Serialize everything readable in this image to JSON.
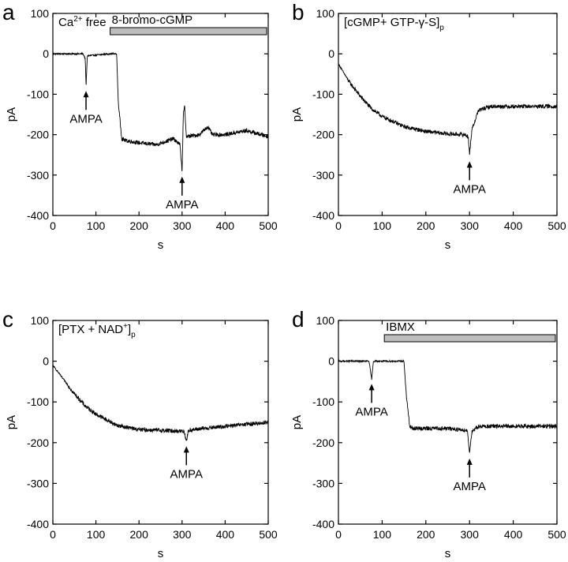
{
  "figure": {
    "background": "#ffffff",
    "trace_color": "#000000",
    "bar_color": "#bdbdbd"
  },
  "chart_data": [
    {
      "panel": "a",
      "type": "line",
      "title": "",
      "condition": {
        "main": "Ca",
        "sup": "2+",
        "rest": " free"
      },
      "bar_label": "8-bromo-cGMP",
      "bar_range_s": [
        133,
        500
      ],
      "xlabel": "s",
      "ylabel": "pA",
      "xlim": [
        0,
        500
      ],
      "ylim": [
        -400,
        100
      ],
      "xticks": [
        0,
        100,
        200,
        300,
        400,
        500
      ],
      "yticks": [
        100,
        0,
        -100,
        -200,
        -300,
        -400
      ],
      "grid": false,
      "series": [
        {
          "x": [
            0,
            70,
            75,
            77,
            80,
            130,
            148,
            152,
            160,
            170,
            200,
            240,
            280,
            295,
            300,
            303,
            306,
            310,
            340,
            360,
            370,
            400,
            450,
            500
          ],
          "y": [
            0,
            0,
            -10,
            -80,
            -5,
            0,
            0,
            -120,
            -210,
            -215,
            -220,
            -225,
            -210,
            -225,
            -290,
            -150,
            -130,
            -205,
            -200,
            -180,
            -200,
            -200,
            -190,
            -205
          ]
        }
      ],
      "annotations": [
        {
          "text": "AMPA",
          "x": 77,
          "y": -88
        },
        {
          "text": "AMPA",
          "x": 300,
          "y": -300
        }
      ]
    },
    {
      "panel": "b",
      "type": "line",
      "title": "",
      "condition": {
        "main": "[cGMP+ GTP-γ-S]",
        "sub": "p"
      },
      "xlabel": "s",
      "ylabel": "pA",
      "xlim": [
        0,
        500
      ],
      "ylim": [
        -400,
        100
      ],
      "xticks": [
        0,
        100,
        200,
        300,
        400,
        500
      ],
      "yticks": [
        100,
        0,
        -100,
        -200,
        -300,
        -400
      ],
      "grid": false,
      "series": [
        {
          "x": [
            0,
            25,
            50,
            75,
            100,
            150,
            200,
            250,
            290,
            297,
            300,
            305,
            320,
            350,
            400,
            450,
            500
          ],
          "y": [
            -25,
            -70,
            -105,
            -135,
            -155,
            -180,
            -192,
            -198,
            -200,
            -205,
            -250,
            -190,
            -140,
            -130,
            -130,
            -130,
            -130
          ]
        }
      ],
      "annotations": [
        {
          "text": "AMPA",
          "x": 300,
          "y": -262
        }
      ]
    },
    {
      "panel": "c",
      "type": "line",
      "title": "",
      "condition": {
        "main": "[PTX + NAD",
        "sup": "+",
        "rest": "]",
        "sub": "p"
      },
      "xlabel": "s",
      "ylabel": "pA",
      "xlim": [
        0,
        500
      ],
      "ylim": [
        -400,
        100
      ],
      "xticks": [
        0,
        100,
        200,
        300,
        400,
        500
      ],
      "yticks": [
        100,
        0,
        -100,
        -200,
        -300,
        -400
      ],
      "grid": false,
      "series": [
        {
          "x": [
            0,
            25,
            50,
            75,
            100,
            150,
            200,
            250,
            305,
            310,
            315,
            350,
            400,
            450,
            500
          ],
          "y": [
            -10,
            -45,
            -80,
            -110,
            -130,
            -158,
            -168,
            -170,
            -172,
            -195,
            -170,
            -165,
            -160,
            -155,
            -150
          ]
        }
      ],
      "annotations": [
        {
          "text": "AMPA",
          "x": 310,
          "y": -205
        }
      ]
    },
    {
      "panel": "d",
      "type": "line",
      "title": "",
      "bar_label": "IBMX",
      "bar_range_s": [
        105,
        500
      ],
      "xlabel": "s",
      "ylabel": "pA",
      "xlim": [
        0,
        500
      ],
      "ylim": [
        -400,
        100
      ],
      "xticks": [
        0,
        100,
        200,
        300,
        400,
        500
      ],
      "yticks": [
        100,
        0,
        -100,
        -200,
        -300,
        -400
      ],
      "grid": false,
      "series": [
        {
          "x": [
            0,
            70,
            76,
            80,
            150,
            155,
            163,
            170,
            200,
            250,
            295,
            300,
            305,
            320,
            350,
            400,
            450,
            500
          ],
          "y": [
            0,
            0,
            -45,
            0,
            0,
            -80,
            -160,
            -165,
            -165,
            -165,
            -170,
            -225,
            -175,
            -160,
            -160,
            -160,
            -160,
            -160
          ]
        }
      ],
      "annotations": [
        {
          "text": "AMPA",
          "x": 76,
          "y": -52
        },
        {
          "text": "AMPA",
          "x": 300,
          "y": -235
        }
      ]
    }
  ]
}
